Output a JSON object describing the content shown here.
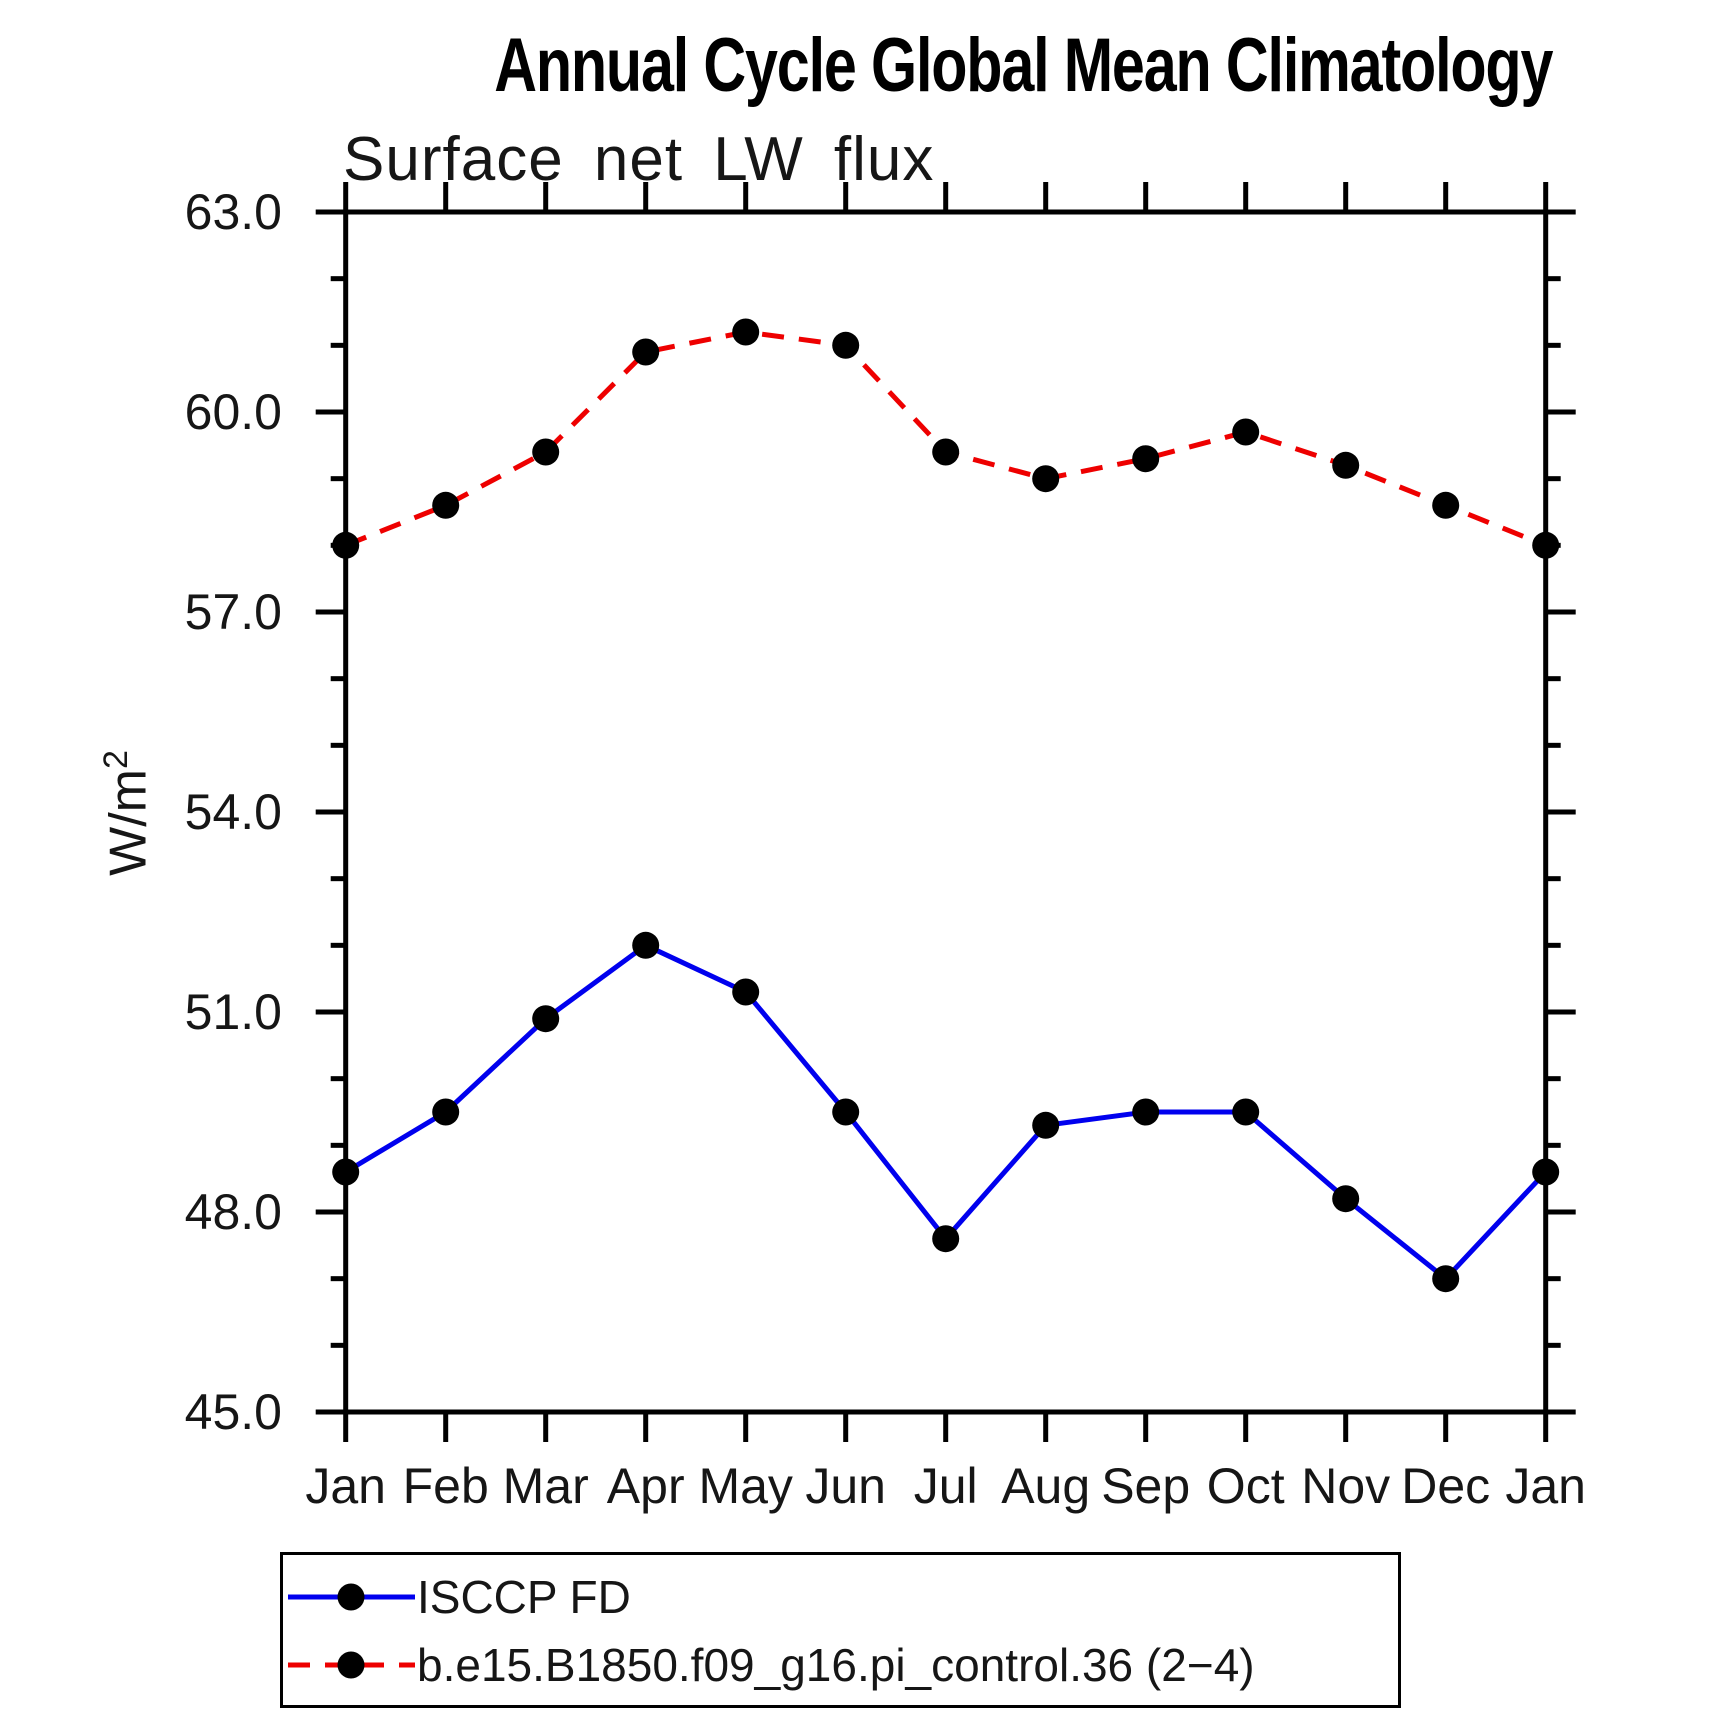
{
  "chart_data": {
    "type": "line",
    "title": "Annual Cycle Global Mean Climatology",
    "subtitle": "Surface net LW flux",
    "ylabel": "W/m²",
    "ylabel_base": "W/m",
    "ylabel_sup": "2",
    "categories": [
      "Jan",
      "Feb",
      "Mar",
      "Apr",
      "May",
      "Jun",
      "Jul",
      "Aug",
      "Sep",
      "Oct",
      "Nov",
      "Dec",
      "Jan"
    ],
    "series": [
      {
        "name": "ISCCP FD",
        "color": "#0000ee",
        "line_style": "solid",
        "marker": "circle",
        "marker_color": "#000000",
        "values": [
          48.6,
          49.5,
          50.9,
          52.0,
          51.3,
          49.5,
          47.6,
          49.3,
          49.5,
          49.5,
          48.2,
          47.0,
          48.6
        ]
      },
      {
        "name": "b.e15.B1850.f09_g16.pi_control.36 (2−4)",
        "color": "#ee0000",
        "line_style": "dashed",
        "marker": "circle",
        "marker_color": "#000000",
        "values": [
          58.0,
          58.6,
          59.4,
          60.9,
          61.2,
          61.0,
          59.4,
          59.0,
          59.3,
          59.7,
          59.2,
          58.6,
          58.0
        ]
      }
    ],
    "ylim": [
      45.0,
      63.0
    ],
    "y_major_ticks": [
      45.0,
      48.0,
      51.0,
      54.0,
      57.0,
      60.0,
      63.0
    ],
    "y_tick_labels": [
      "45.0",
      "48.0",
      "51.0",
      "54.0",
      "57.0",
      "60.0",
      "63.0"
    ],
    "y_minor_step": 1.0,
    "grid": false,
    "legend_position": "bottom-left",
    "axis_color": "#000000"
  }
}
